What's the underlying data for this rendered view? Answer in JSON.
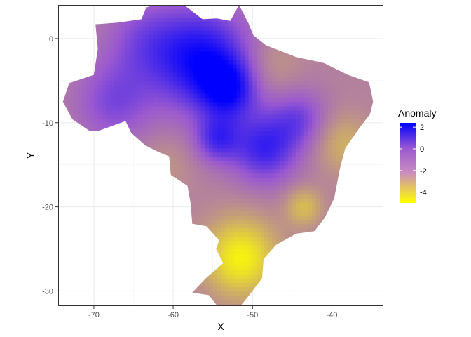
{
  "chart_data": {
    "type": "heatmap",
    "title": "",
    "xlabel": "X",
    "ylabel": "Y",
    "xlim": [
      -74.5,
      -33.5
    ],
    "ylim": [
      -31.8,
      4.0
    ],
    "x_ticks": [
      -70,
      -60,
      -50,
      -40
    ],
    "y_ticks": [
      0,
      -10,
      -20,
      -30
    ],
    "x_tick_labels": [
      "-70",
      "-60",
      "-50",
      "-40"
    ],
    "y_tick_labels": [
      "0",
      "-10",
      "-20",
      "-30"
    ],
    "grid": true,
    "legend": {
      "title": "Anomaly",
      "position": "right",
      "range": [
        -5,
        2.4
      ],
      "breaks": [
        2,
        0,
        -2,
        -4
      ],
      "break_labels": [
        "2",
        "0",
        "-2",
        "-4"
      ]
    },
    "colorscale": {
      "low": "#ffff00",
      "mid": "#9b59d0",
      "high": "#0000ff",
      "mid_value": 0
    },
    "region_outline_lonlat": [
      [
        -60.8,
        4.0
      ],
      [
        -58.5,
        3.9
      ],
      [
        -56.3,
        2.3
      ],
      [
        -54.5,
        2.4
      ],
      [
        -52.8,
        2.1
      ],
      [
        -51.7,
        4.0
      ],
      [
        -50.5,
        1.8
      ],
      [
        -49.9,
        0.4
      ],
      [
        -48.3,
        -0.8
      ],
      [
        -44.5,
        -2.2
      ],
      [
        -41.0,
        -2.9
      ],
      [
        -38.0,
        -4.3
      ],
      [
        -35.3,
        -5.2
      ],
      [
        -34.8,
        -7.5
      ],
      [
        -35.2,
        -9.0
      ],
      [
        -36.5,
        -10.6
      ],
      [
        -38.3,
        -13.0
      ],
      [
        -39.0,
        -15.5
      ],
      [
        -39.7,
        -19.0
      ],
      [
        -40.9,
        -21.3
      ],
      [
        -42.2,
        -22.9
      ],
      [
        -44.5,
        -23.2
      ],
      [
        -47.0,
        -24.5
      ],
      [
        -48.6,
        -26.2
      ],
      [
        -48.8,
        -28.5
      ],
      [
        -50.5,
        -30.6
      ],
      [
        -53.0,
        -33.5
      ],
      [
        -55.5,
        -30.5
      ],
      [
        -57.6,
        -30.2
      ],
      [
        -55.9,
        -28.5
      ],
      [
        -53.7,
        -26.7
      ],
      [
        -54.6,
        -25.0
      ],
      [
        -54.2,
        -24.0
      ],
      [
        -55.8,
        -22.3
      ],
      [
        -57.6,
        -22.0
      ],
      [
        -57.8,
        -19.6
      ],
      [
        -58.2,
        -17.5
      ],
      [
        -60.3,
        -16.2
      ],
      [
        -60.5,
        -14.0
      ],
      [
        -61.8,
        -13.5
      ],
      [
        -63.5,
        -12.7
      ],
      [
        -65.3,
        -11.2
      ],
      [
        -66.0,
        -9.8
      ],
      [
        -69.5,
        -11.0
      ],
      [
        -70.5,
        -11.0
      ],
      [
        -72.7,
        -9.6
      ],
      [
        -73.9,
        -7.5
      ],
      [
        -73.1,
        -5.3
      ],
      [
        -70.0,
        -4.3
      ],
      [
        -69.5,
        -1.2
      ],
      [
        -69.8,
        1.7
      ],
      [
        -67.0,
        1.9
      ],
      [
        -64.0,
        2.3
      ],
      [
        -63.4,
        3.7
      ],
      [
        -62.0,
        4.1
      ]
    ],
    "anomaly_field": {
      "base": -1.2,
      "features": [
        {
          "lon": -56.5,
          "lat": -2.5,
          "value": 3.3,
          "radius": 4.5
        },
        {
          "lon": -53.0,
          "lat": -6.0,
          "value": 2.3,
          "radius": 2.5
        },
        {
          "lon": -48.5,
          "lat": -13.0,
          "value": 2.6,
          "radius": 3.0
        },
        {
          "lon": -54.5,
          "lat": -12.0,
          "value": 2.0,
          "radius": 2.0
        },
        {
          "lon": -67.5,
          "lat": -7.5,
          "value": 1.6,
          "radius": 3.5
        },
        {
          "lon": -44.0,
          "lat": -9.5,
          "value": 1.6,
          "radius": 2.5
        },
        {
          "lon": -64.0,
          "lat": 0.0,
          "value": 1.2,
          "radius": 3.5
        },
        {
          "lon": -51.5,
          "lat": -26.0,
          "value": -3.4,
          "radius": 3.2
        },
        {
          "lon": -43.5,
          "lat": -20.0,
          "value": -1.8,
          "radius": 1.6
        },
        {
          "lon": -47.5,
          "lat": -3.0,
          "value": -0.8,
          "radius": 2.5
        },
        {
          "lon": -38.5,
          "lat": -12.5,
          "value": -1.4,
          "radius": 2.5
        },
        {
          "lon": -61.0,
          "lat": -15.0,
          "value": -0.6,
          "radius": 2.5
        }
      ]
    }
  }
}
